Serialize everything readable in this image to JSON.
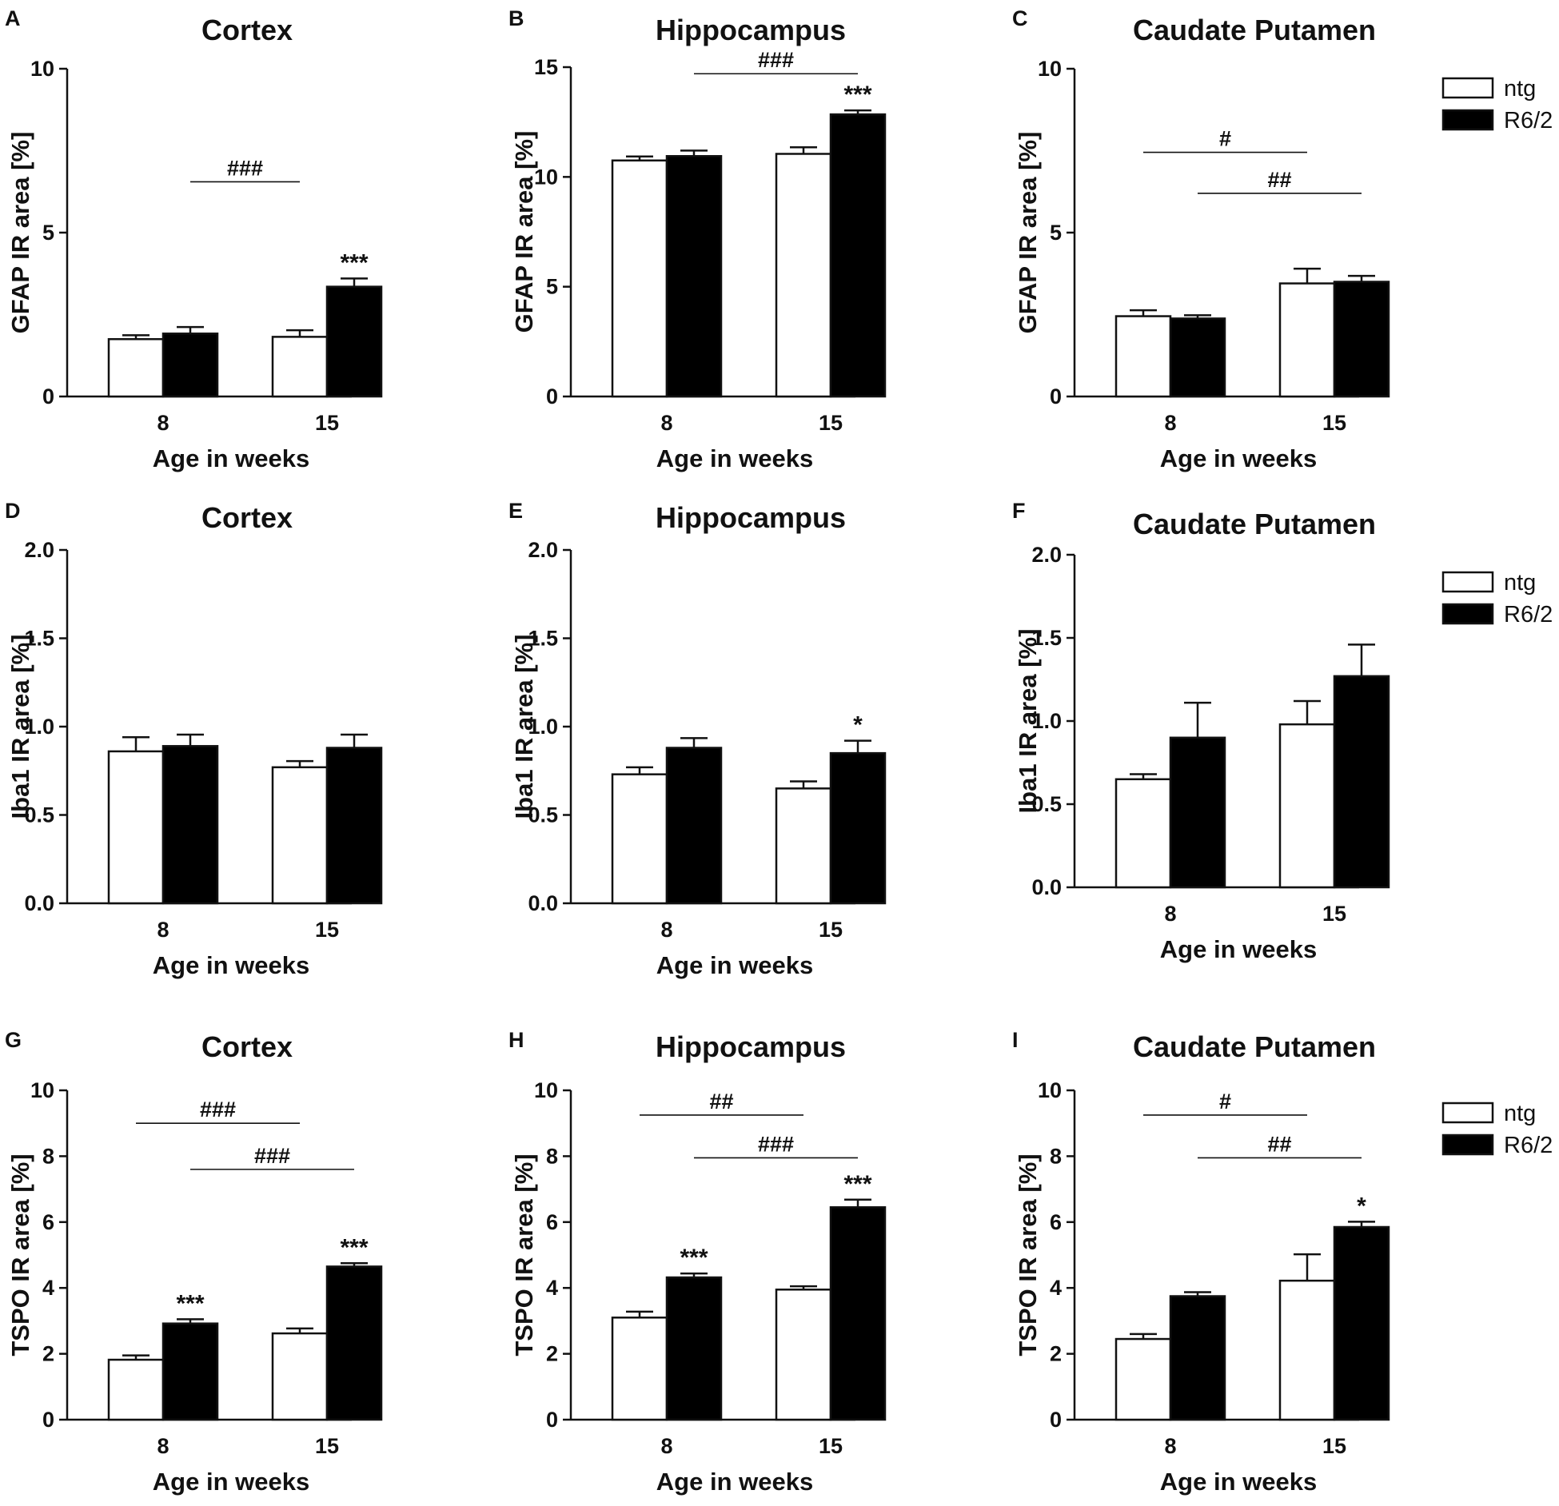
{
  "figure": {
    "colors": {
      "ntg": "#ffffff",
      "r62": "#000000",
      "axis": "#111111"
    },
    "legend_entries": [
      "ntg",
      "R6/2"
    ]
  },
  "chart_data": [
    {
      "panel": "A",
      "type": "bar",
      "title": "Cortex",
      "xlabel": "Age in weeks",
      "ylabel": "GFAP IR area [%]",
      "ylim": [
        0,
        10
      ],
      "yticks": [
        "0",
        "5",
        "10"
      ],
      "categories": [
        "8",
        "15"
      ],
      "series": [
        {
          "name": "ntg",
          "values": [
            1.75,
            1.82
          ],
          "errors": [
            0.12,
            0.2
          ]
        },
        {
          "name": "R6/2",
          "values": [
            1.92,
            3.35
          ],
          "errors": [
            0.2,
            0.25
          ]
        }
      ],
      "stars": [
        {
          "category": 1,
          "series": 1,
          "text": "***"
        }
      ],
      "brackets": [
        {
          "from": [
            0,
            1
          ],
          "to": [
            1,
            0
          ],
          "text": "###",
          "level": 6.55
        }
      ],
      "legend": false
    },
    {
      "panel": "B",
      "type": "bar",
      "title": "Hippocampus",
      "xlabel": "Age in weeks",
      "ylabel": "GFAP IR area [%]",
      "ylim": [
        0,
        15
      ],
      "yticks": [
        "0",
        "5",
        "10",
        "15"
      ],
      "categories": [
        "8",
        "15"
      ],
      "series": [
        {
          "name": "ntg",
          "values": [
            10.75,
            11.05
          ],
          "errors": [
            0.18,
            0.3
          ]
        },
        {
          "name": "R6/2",
          "values": [
            10.95,
            12.85
          ],
          "errors": [
            0.25,
            0.18
          ]
        }
      ],
      "stars": [
        {
          "category": 1,
          "series": 1,
          "text": "***"
        }
      ],
      "brackets": [
        {
          "from": [
            0,
            1
          ],
          "to": [
            1,
            1
          ],
          "text": "###",
          "level": 14.7
        }
      ],
      "legend": false
    },
    {
      "panel": "C",
      "type": "bar",
      "title": "Caudate Putamen",
      "xlabel": "Age in weeks",
      "ylabel": "GFAP IR area [%]",
      "ylim": [
        0,
        10
      ],
      "yticks": [
        "0",
        "5",
        "10"
      ],
      "categories": [
        "8",
        "15"
      ],
      "series": [
        {
          "name": "ntg",
          "values": [
            2.45,
            3.45
          ],
          "errors": [
            0.18,
            0.45
          ]
        },
        {
          "name": "R6/2",
          "values": [
            2.38,
            3.5
          ],
          "errors": [
            0.1,
            0.18
          ]
        }
      ],
      "stars": [],
      "brackets": [
        {
          "from": [
            0,
            0
          ],
          "to": [
            1,
            0
          ],
          "text": "#",
          "level": 7.45
        },
        {
          "from": [
            0,
            1
          ],
          "to": [
            1,
            1
          ],
          "text": "##",
          "level": 6.2
        }
      ],
      "legend": true
    },
    {
      "panel": "D",
      "type": "bar",
      "title": "Cortex",
      "xlabel": "Age in weeks",
      "ylabel": "Iba1 IR area [%]",
      "ylim": [
        0,
        2
      ],
      "yticks": [
        "0.0",
        "0.5",
        "1.0",
        "1.5",
        "2.0"
      ],
      "categories": [
        "8",
        "15"
      ],
      "series": [
        {
          "name": "ntg",
          "values": [
            0.86,
            0.77
          ],
          "errors": [
            0.08,
            0.035
          ]
        },
        {
          "name": "R6/2",
          "values": [
            0.89,
            0.88
          ],
          "errors": [
            0.065,
            0.075
          ]
        }
      ],
      "stars": [],
      "brackets": [],
      "legend": false
    },
    {
      "panel": "E",
      "type": "bar",
      "title": "Hippocampus",
      "xlabel": "Age in weeks",
      "ylabel": "Iba1 IR area [%]",
      "ylim": [
        0,
        2
      ],
      "yticks": [
        "0.0",
        "0.5",
        "1.0",
        "1.5",
        "2.0"
      ],
      "categories": [
        "8",
        "15"
      ],
      "series": [
        {
          "name": "ntg",
          "values": [
            0.73,
            0.65
          ],
          "errors": [
            0.04,
            0.04
          ]
        },
        {
          "name": "R6/2",
          "values": [
            0.88,
            0.85
          ],
          "errors": [
            0.055,
            0.07
          ]
        }
      ],
      "stars": [
        {
          "category": 1,
          "series": 1,
          "text": "*"
        }
      ],
      "brackets": [],
      "legend": false
    },
    {
      "panel": "F",
      "type": "bar",
      "title": "Caudate Putamen",
      "xlabel": "Age in weeks",
      "ylabel": "Iba1 IR area [%]",
      "ylim": [
        0,
        2
      ],
      "yticks": [
        "0.0",
        "0.5",
        "1.0",
        "1.5",
        "2.0"
      ],
      "categories": [
        "8",
        "15"
      ],
      "series": [
        {
          "name": "ntg",
          "values": [
            0.65,
            0.98
          ],
          "errors": [
            0.03,
            0.14
          ]
        },
        {
          "name": "R6/2",
          "values": [
            0.9,
            1.27
          ],
          "errors": [
            0.21,
            0.19
          ]
        }
      ],
      "stars": [],
      "brackets": [],
      "legend": true
    },
    {
      "panel": "G",
      "type": "bar",
      "title": "Cortex",
      "xlabel": "Age in weeks",
      "ylabel": "TSPO IR area [%]",
      "ylim": [
        0,
        10
      ],
      "yticks": [
        "0",
        "2",
        "4",
        "6",
        "8",
        "10"
      ],
      "categories": [
        "8",
        "15"
      ],
      "series": [
        {
          "name": "ntg",
          "values": [
            1.82,
            2.62
          ],
          "errors": [
            0.13,
            0.15
          ]
        },
        {
          "name": "R6/2",
          "values": [
            2.92,
            4.65
          ],
          "errors": [
            0.13,
            0.1
          ]
        }
      ],
      "stars": [
        {
          "category": 0,
          "series": 1,
          "text": "***"
        },
        {
          "category": 1,
          "series": 1,
          "text": "***"
        }
      ],
      "brackets": [
        {
          "from": [
            0,
            0
          ],
          "to": [
            1,
            0
          ],
          "text": "###",
          "level": 9.0
        },
        {
          "from": [
            0,
            1
          ],
          "to": [
            1,
            1
          ],
          "text": "###",
          "level": 7.6
        }
      ],
      "legend": false
    },
    {
      "panel": "H",
      "type": "bar",
      "title": "Hippocampus",
      "xlabel": "Age in weeks",
      "ylabel": "TSPO IR area [%]",
      "ylim": [
        0,
        10
      ],
      "yticks": [
        "0",
        "2",
        "4",
        "6",
        "8",
        "10"
      ],
      "categories": [
        "8",
        "15"
      ],
      "series": [
        {
          "name": "ntg",
          "values": [
            3.1,
            3.95
          ],
          "errors": [
            0.18,
            0.1
          ]
        },
        {
          "name": "R6/2",
          "values": [
            4.32,
            6.45
          ],
          "errors": [
            0.12,
            0.23
          ]
        }
      ],
      "stars": [
        {
          "category": 0,
          "series": 1,
          "text": "***"
        },
        {
          "category": 1,
          "series": 1,
          "text": "***"
        }
      ],
      "brackets": [
        {
          "from": [
            0,
            0
          ],
          "to": [
            1,
            0
          ],
          "text": "##",
          "level": 9.25
        },
        {
          "from": [
            0,
            1
          ],
          "to": [
            1,
            1
          ],
          "text": "###",
          "level": 7.95
        }
      ],
      "legend": false
    },
    {
      "panel": "I",
      "type": "bar",
      "title": "Caudate Putamen",
      "xlabel": "Age in weeks",
      "ylabel": "TSPO IR area [%]",
      "ylim": [
        0,
        10
      ],
      "yticks": [
        "0",
        "2",
        "4",
        "6",
        "8",
        "10"
      ],
      "categories": [
        "8",
        "15"
      ],
      "series": [
        {
          "name": "ntg",
          "values": [
            2.45,
            4.22
          ],
          "errors": [
            0.15,
            0.8
          ]
        },
        {
          "name": "R6/2",
          "values": [
            3.75,
            5.85
          ],
          "errors": [
            0.12,
            0.16
          ]
        }
      ],
      "stars": [
        {
          "category": 1,
          "series": 1,
          "text": "*"
        }
      ],
      "brackets": [
        {
          "from": [
            0,
            0
          ],
          "to": [
            1,
            0
          ],
          "text": "#",
          "level": 9.25
        },
        {
          "from": [
            0,
            1
          ],
          "to": [
            1,
            1
          ],
          "text": "##",
          "level": 7.95
        }
      ],
      "legend": true
    }
  ]
}
